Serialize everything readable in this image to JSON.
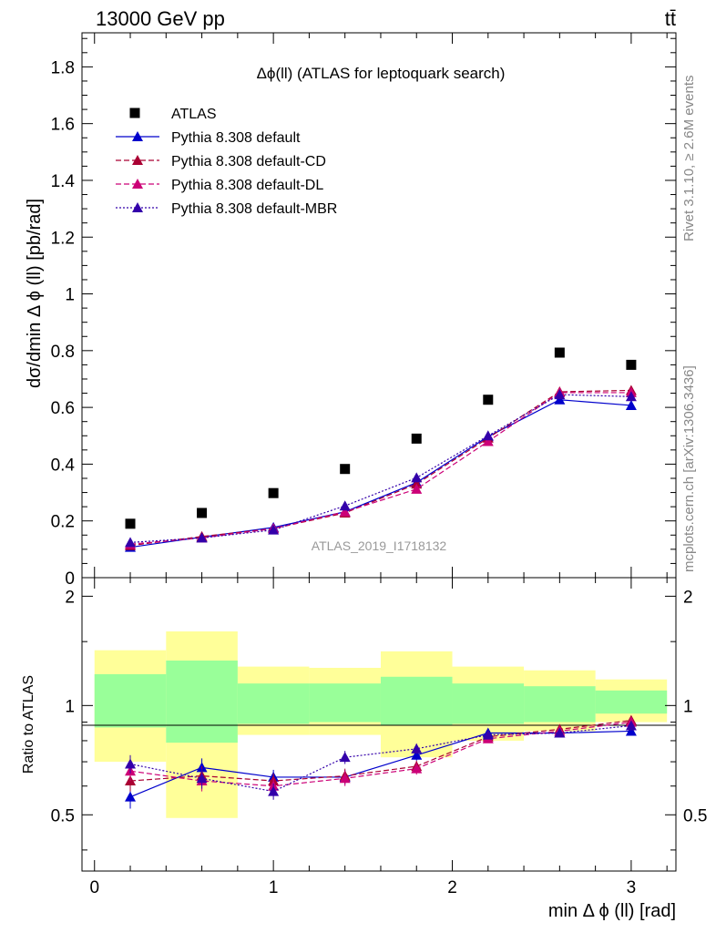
{
  "header": {
    "energy_label": "13000 GeV pp",
    "process_label": "tt̄",
    "side_rivet": "Rivet 3.1.10, ≥ 2.6M events",
    "side_source": "mcplots.cern.ch [arXiv:1306.3436]"
  },
  "chart_data": {
    "type": "scatter",
    "title": "Δϕ(ll) (ATLAS for leptoquark search)",
    "watermark": "ATLAS_2019_I1718132",
    "xlabel": "min Δ ϕ (ll) [rad]",
    "ylabel": "dσ/dmin Δ ϕ (ll) [pb/rad]",
    "ratio_ylabel": "Ratio to ATLAS",
    "xlim": [
      -0.07,
      3.25
    ],
    "ylim": [
      0,
      1.92
    ],
    "ratio_ylim": [
      0.35,
      2.25
    ],
    "x_ticks": [
      "0",
      "1",
      "2",
      "3"
    ],
    "y_ticks": [
      "0",
      "0.2",
      "0.4",
      "0.6",
      "0.8",
      "1",
      "1.2",
      "1.4",
      "1.6",
      "1.8"
    ],
    "ratio_ticks": [
      "0.5",
      "1",
      "2"
    ],
    "bin_edges": [
      0,
      0.4,
      0.8,
      1.2,
      1.6,
      2.0,
      2.4,
      2.8,
      3.2
    ],
    "x": [
      0.2,
      0.6,
      1.0,
      1.4,
      1.8,
      2.2,
      2.6,
      3.0
    ],
    "data": {
      "name": "ATLAS",
      "values": [
        0.19,
        0.228,
        0.298,
        0.383,
        0.49,
        0.627,
        0.793,
        0.75
      ]
    },
    "series": [
      {
        "name": "Pythia 8.308 default",
        "color": "#0000cc",
        "dash": "",
        "values": [
          0.107,
          0.143,
          0.177,
          0.232,
          0.335,
          0.497,
          0.627,
          0.607
        ],
        "errors": [
          0.008,
          0.008,
          0.008,
          0.009,
          0.01,
          0.012,
          0.013,
          0.013
        ]
      },
      {
        "name": "Pythia 8.308 default-CD",
        "color": "#aa0033",
        "dash": "6,3",
        "values": [
          0.113,
          0.145,
          0.173,
          0.228,
          0.33,
          0.492,
          0.655,
          0.66
        ],
        "errors": [
          0.008,
          0.008,
          0.008,
          0.009,
          0.01,
          0.012,
          0.013,
          0.013
        ]
      },
      {
        "name": "Pythia 8.308 default-DL",
        "color": "#cc0077",
        "dash": "6,3",
        "values": [
          0.118,
          0.14,
          0.173,
          0.232,
          0.312,
          0.48,
          0.652,
          0.652
        ],
        "errors": [
          0.008,
          0.008,
          0.008,
          0.009,
          0.01,
          0.012,
          0.013,
          0.013
        ]
      },
      {
        "name": "Pythia 8.308 default-MBR",
        "color": "#3300aa",
        "dash": "2,2",
        "values": [
          0.124,
          0.14,
          0.168,
          0.253,
          0.352,
          0.5,
          0.645,
          0.638
        ],
        "errors": [
          0.008,
          0.008,
          0.008,
          0.009,
          0.01,
          0.012,
          0.013,
          0.013
        ]
      }
    ],
    "ratio_series": [
      {
        "name": "Pythia 8.308 default",
        "values": [
          0.56,
          0.675,
          0.635,
          0.635,
          0.73,
          0.84,
          0.84,
          0.85
        ],
        "errors": [
          0.04,
          0.04,
          0.03,
          0.03,
          0.025,
          0.02,
          0.02,
          0.02
        ]
      },
      {
        "name": "Pythia 8.308 default-CD",
        "values": [
          0.62,
          0.64,
          0.62,
          0.64,
          0.68,
          0.82,
          0.86,
          0.91
        ],
        "errors": [
          0.04,
          0.04,
          0.03,
          0.03,
          0.025,
          0.02,
          0.02,
          0.02
        ]
      },
      {
        "name": "Pythia 8.308 default-DL",
        "values": [
          0.66,
          0.62,
          0.6,
          0.63,
          0.67,
          0.81,
          0.85,
          0.9
        ],
        "errors": [
          0.04,
          0.04,
          0.03,
          0.03,
          0.025,
          0.02,
          0.02,
          0.02
        ]
      },
      {
        "name": "Pythia 8.308 default-MBR",
        "values": [
          0.69,
          0.63,
          0.58,
          0.72,
          0.76,
          0.83,
          0.84,
          0.88
        ],
        "errors": [
          0.04,
          0.04,
          0.03,
          0.03,
          0.025,
          0.02,
          0.02,
          0.02
        ]
      }
    ],
    "uncertainty_bands": {
      "stat_low": [
        0.87,
        0.79,
        0.89,
        0.9,
        0.88,
        0.89,
        0.9,
        0.95
      ],
      "stat_high": [
        1.22,
        1.33,
        1.15,
        1.15,
        1.2,
        1.15,
        1.13,
        1.1
      ],
      "total_low": [
        0.7,
        0.49,
        0.83,
        0.83,
        0.72,
        0.8,
        0.85,
        0.9
      ],
      "total_high": [
        1.42,
        1.6,
        1.28,
        1.27,
        1.41,
        1.28,
        1.25,
        1.18
      ]
    },
    "legend_position": "top-left",
    "colors": {
      "data": "#000000",
      "stat_band": "#99ff99",
      "total_band": "#ffff99"
    }
  }
}
